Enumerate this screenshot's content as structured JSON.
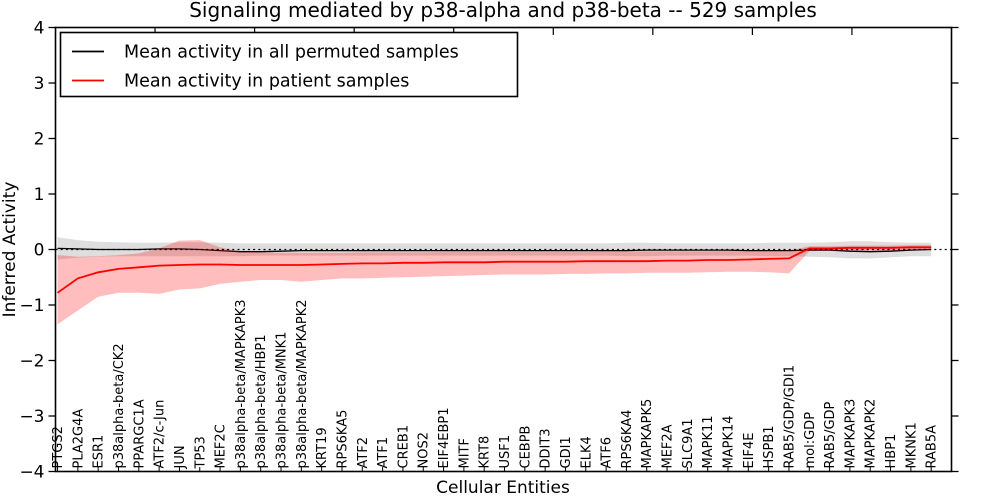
{
  "figure": {
    "title": "Signaling mediated by p38-alpha and p38-beta -- 529 samples"
  },
  "chart_data": {
    "type": "line",
    "title": "Signaling mediated by p38-alpha and p38-beta -- 529 samples",
    "xlabel": "Cellular Entities",
    "ylabel": "Inferred Activity",
    "ylim": [
      -4,
      4
    ],
    "ytick_values": [
      4,
      3,
      2,
      1,
      0,
      -1,
      -2,
      -3,
      -4
    ],
    "ytick_labels": [
      "4",
      "3",
      "2",
      "1",
      "0",
      "−1",
      "−2",
      "−3",
      "−4"
    ],
    "grid": false,
    "zero_reference_line": {
      "y": 0,
      "style": "dotted",
      "color": "#000000"
    },
    "legend": {
      "position": "upper left",
      "entries": [
        {
          "label": "Mean activity in all permuted samples",
          "color": "#000000"
        },
        {
          "label": "Mean activity in patient samples",
          "color": "#ff0000"
        }
      ]
    },
    "categories": [
      "PTGS2",
      "PLA2G4A",
      "ESR1",
      "p38alpha-beta/CK2",
      "PPARGC1A",
      "ATF2/c-Jun",
      "JUN",
      "TP53",
      "MEF2C",
      "p38alpha-beta/MAPKAPK3",
      "p38alpha-beta/HBP1",
      "p38alpha-beta/MNK1",
      "p38alpha-beta/MAPKAPK2",
      "KRT19",
      "RPS6KA5",
      "ATF2",
      "ATF1",
      "CREB1",
      "NOS2",
      "EIF4EBP1",
      "MITF",
      "KRT8",
      "USF1",
      "CEBPB",
      "DDIT3",
      "GDI1",
      "ELK4",
      "ATF6",
      "RPS6KA4",
      "MAPKAPK5",
      "MEF2A",
      "SLC9A1",
      "MAPK11",
      "MAPK14",
      "EIF4E",
      "HSPB1",
      "RAB5/GDP/GDI1",
      "mol:GDP",
      "RAB5/GDP",
      "MAPKAPK3",
      "MAPKAPK2",
      "HBP1",
      "MKNK1",
      "RAB5A"
    ],
    "series": [
      {
        "name": "Mean activity in all permuted samples",
        "color": "#000000",
        "line_width": 1.3,
        "band_color": "#000000",
        "band_opacity": 0.13,
        "values": [
          0.02,
          0.01,
          0.0,
          0.0,
          0.0,
          0.01,
          0.01,
          0.0,
          -0.02,
          -0.04,
          -0.04,
          -0.03,
          -0.02,
          -0.02,
          -0.02,
          -0.02,
          -0.02,
          -0.02,
          -0.02,
          -0.02,
          -0.02,
          -0.02,
          -0.02,
          -0.02,
          -0.02,
          -0.02,
          -0.02,
          -0.02,
          -0.02,
          -0.01,
          -0.01,
          -0.01,
          -0.01,
          -0.01,
          -0.02,
          -0.02,
          -0.02,
          -0.01,
          -0.01,
          -0.03,
          -0.04,
          -0.03,
          -0.01,
          0.0
        ],
        "band_upper": [
          0.22,
          0.17,
          0.14,
          0.13,
          0.12,
          0.12,
          0.13,
          0.13,
          0.12,
          0.11,
          0.11,
          0.11,
          0.11,
          0.11,
          0.11,
          0.11,
          0.11,
          0.11,
          0.11,
          0.11,
          0.11,
          0.11,
          0.11,
          0.11,
          0.11,
          0.11,
          0.11,
          0.11,
          0.12,
          0.12,
          0.11,
          0.11,
          0.11,
          0.11,
          0.11,
          0.12,
          0.12,
          0.12,
          0.13,
          0.15,
          0.15,
          0.13,
          0.12,
          0.12
        ],
        "band_lower": [
          -0.18,
          -0.15,
          -0.13,
          -0.12,
          -0.12,
          -0.12,
          -0.12,
          -0.12,
          -0.12,
          -0.12,
          -0.11,
          -0.11,
          -0.11,
          -0.11,
          -0.11,
          -0.11,
          -0.11,
          -0.11,
          -0.11,
          -0.11,
          -0.11,
          -0.11,
          -0.11,
          -0.11,
          -0.11,
          -0.11,
          -0.11,
          -0.11,
          -0.12,
          -0.12,
          -0.11,
          -0.11,
          -0.11,
          -0.11,
          -0.11,
          -0.12,
          -0.12,
          -0.13,
          -0.14,
          -0.16,
          -0.16,
          -0.14,
          -0.12,
          -0.12
        ]
      },
      {
        "name": "Mean activity in patient samples",
        "color": "#ff0000",
        "line_width": 1.8,
        "band_color": "#ff0000",
        "band_opacity": 0.26,
        "values": [
          -0.78,
          -0.52,
          -0.41,
          -0.35,
          -0.32,
          -0.29,
          -0.28,
          -0.27,
          -0.27,
          -0.28,
          -0.28,
          -0.28,
          -0.28,
          -0.27,
          -0.26,
          -0.25,
          -0.25,
          -0.24,
          -0.24,
          -0.23,
          -0.23,
          -0.23,
          -0.22,
          -0.22,
          -0.22,
          -0.22,
          -0.21,
          -0.21,
          -0.21,
          -0.21,
          -0.2,
          -0.2,
          -0.19,
          -0.19,
          -0.18,
          -0.17,
          -0.16,
          0.02,
          0.02,
          0.03,
          0.03,
          0.03,
          0.04,
          0.04
        ],
        "band_upper": [
          -0.1,
          -0.13,
          -0.12,
          -0.1,
          -0.07,
          0.02,
          0.16,
          0.17,
          0.04,
          -0.04,
          -0.05,
          -0.06,
          -0.06,
          -0.06,
          -0.06,
          -0.05,
          -0.05,
          -0.05,
          -0.05,
          -0.04,
          -0.04,
          -0.04,
          -0.04,
          -0.04,
          -0.04,
          -0.04,
          -0.04,
          -0.03,
          -0.03,
          -0.03,
          -0.03,
          -0.03,
          -0.03,
          -0.02,
          -0.02,
          -0.02,
          -0.02,
          0.06,
          0.06,
          0.07,
          0.07,
          0.07,
          0.08,
          0.08
        ],
        "band_lower": [
          -1.35,
          -1.1,
          -0.85,
          -0.78,
          -0.78,
          -0.8,
          -0.72,
          -0.7,
          -0.62,
          -0.58,
          -0.55,
          -0.55,
          -0.58,
          -0.55,
          -0.52,
          -0.52,
          -0.51,
          -0.5,
          -0.49,
          -0.48,
          -0.47,
          -0.46,
          -0.45,
          -0.45,
          -0.45,
          -0.44,
          -0.44,
          -0.43,
          -0.43,
          -0.42,
          -0.42,
          -0.42,
          -0.41,
          -0.4,
          -0.4,
          -0.41,
          -0.43,
          -0.03,
          -0.02,
          -0.02,
          -0.02,
          -0.02,
          -0.01,
          -0.01
        ]
      }
    ]
  }
}
